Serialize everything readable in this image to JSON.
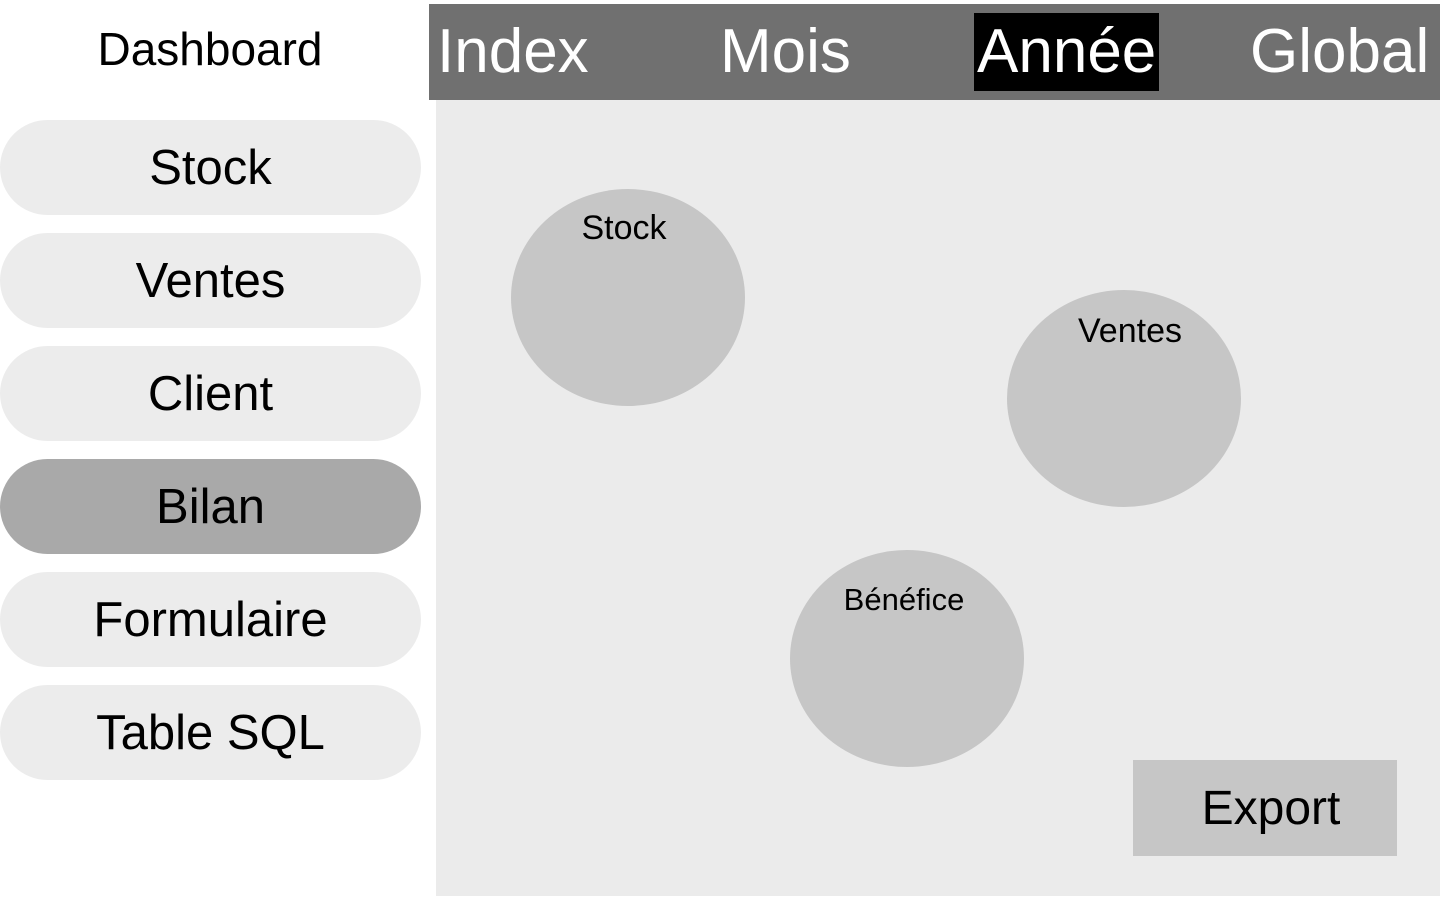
{
  "app": {
    "title": "Dashboard"
  },
  "sidebar": {
    "items": [
      {
        "label": "Stock",
        "active": false
      },
      {
        "label": "Ventes",
        "active": false
      },
      {
        "label": "Client",
        "active": false
      },
      {
        "label": "Bilan",
        "active": true
      },
      {
        "label": "Formulaire",
        "active": false
      },
      {
        "label": "Table SQL",
        "active": false
      }
    ]
  },
  "topbar": {
    "tabs": [
      {
        "label": "Index",
        "active": false
      },
      {
        "label": "Mois",
        "active": false
      },
      {
        "label": "Année",
        "active": true
      },
      {
        "label": "Global",
        "active": false
      }
    ]
  },
  "main": {
    "kpis": [
      {
        "label": "Stock"
      },
      {
        "label": "Ventes"
      },
      {
        "label": "Bénéfice"
      }
    ],
    "export_label": "Export"
  },
  "colors": {
    "topbar_bg": "#707070",
    "active_tab_bg": "#000000",
    "active_sidebar_bg": "#a9a9a9",
    "sidebar_bg": "#ececec",
    "content_bg": "#ebebeb",
    "kpi_bg": "#c6c6c6"
  }
}
